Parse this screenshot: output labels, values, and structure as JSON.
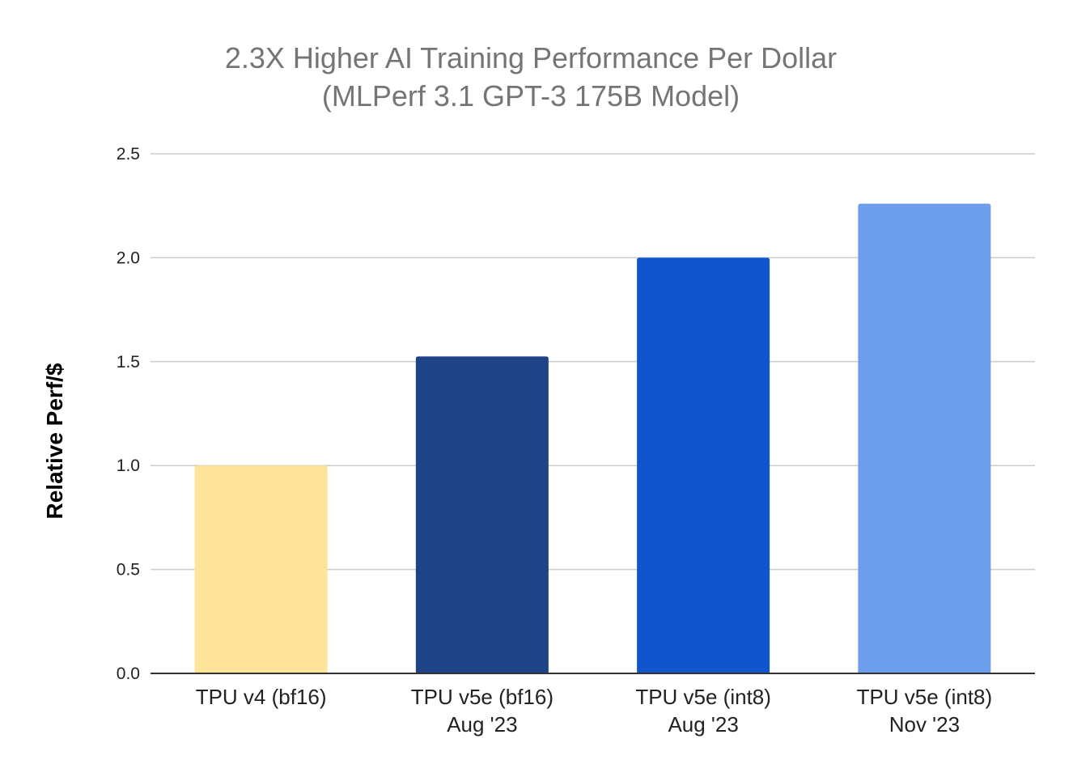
{
  "chart_data": {
    "type": "bar",
    "title": [
      "2.3X Higher AI Training Performance Per Dollar",
      "(MLPerf 3.1 GPT-3 175B Model)"
    ],
    "xlabel": "",
    "ylabel": "Relative Perf/$",
    "ylim": [
      0,
      2.5
    ],
    "yticks": [
      "0.0",
      "0.5",
      "1.0",
      "1.5",
      "2.0",
      "2.5"
    ],
    "ytick_values": [
      0,
      0.5,
      1.0,
      1.5,
      2.0,
      2.5
    ],
    "grid": true,
    "legend": "none",
    "categories": [
      [
        "TPU v4 (bf16)"
      ],
      [
        "TPU v5e (bf16)",
        "Aug '23"
      ],
      [
        "TPU v5e (int8)",
        "Aug '23"
      ],
      [
        "TPU v5e (int8)",
        "Nov '23"
      ]
    ],
    "values": [
      1.0,
      1.525,
      2.0,
      2.26
    ],
    "colors": [
      "#fde498",
      "#1e4487",
      "#1155cc",
      "#6d9eeb"
    ],
    "grid_color": "#cccccc",
    "axis_color": "#333333"
  }
}
